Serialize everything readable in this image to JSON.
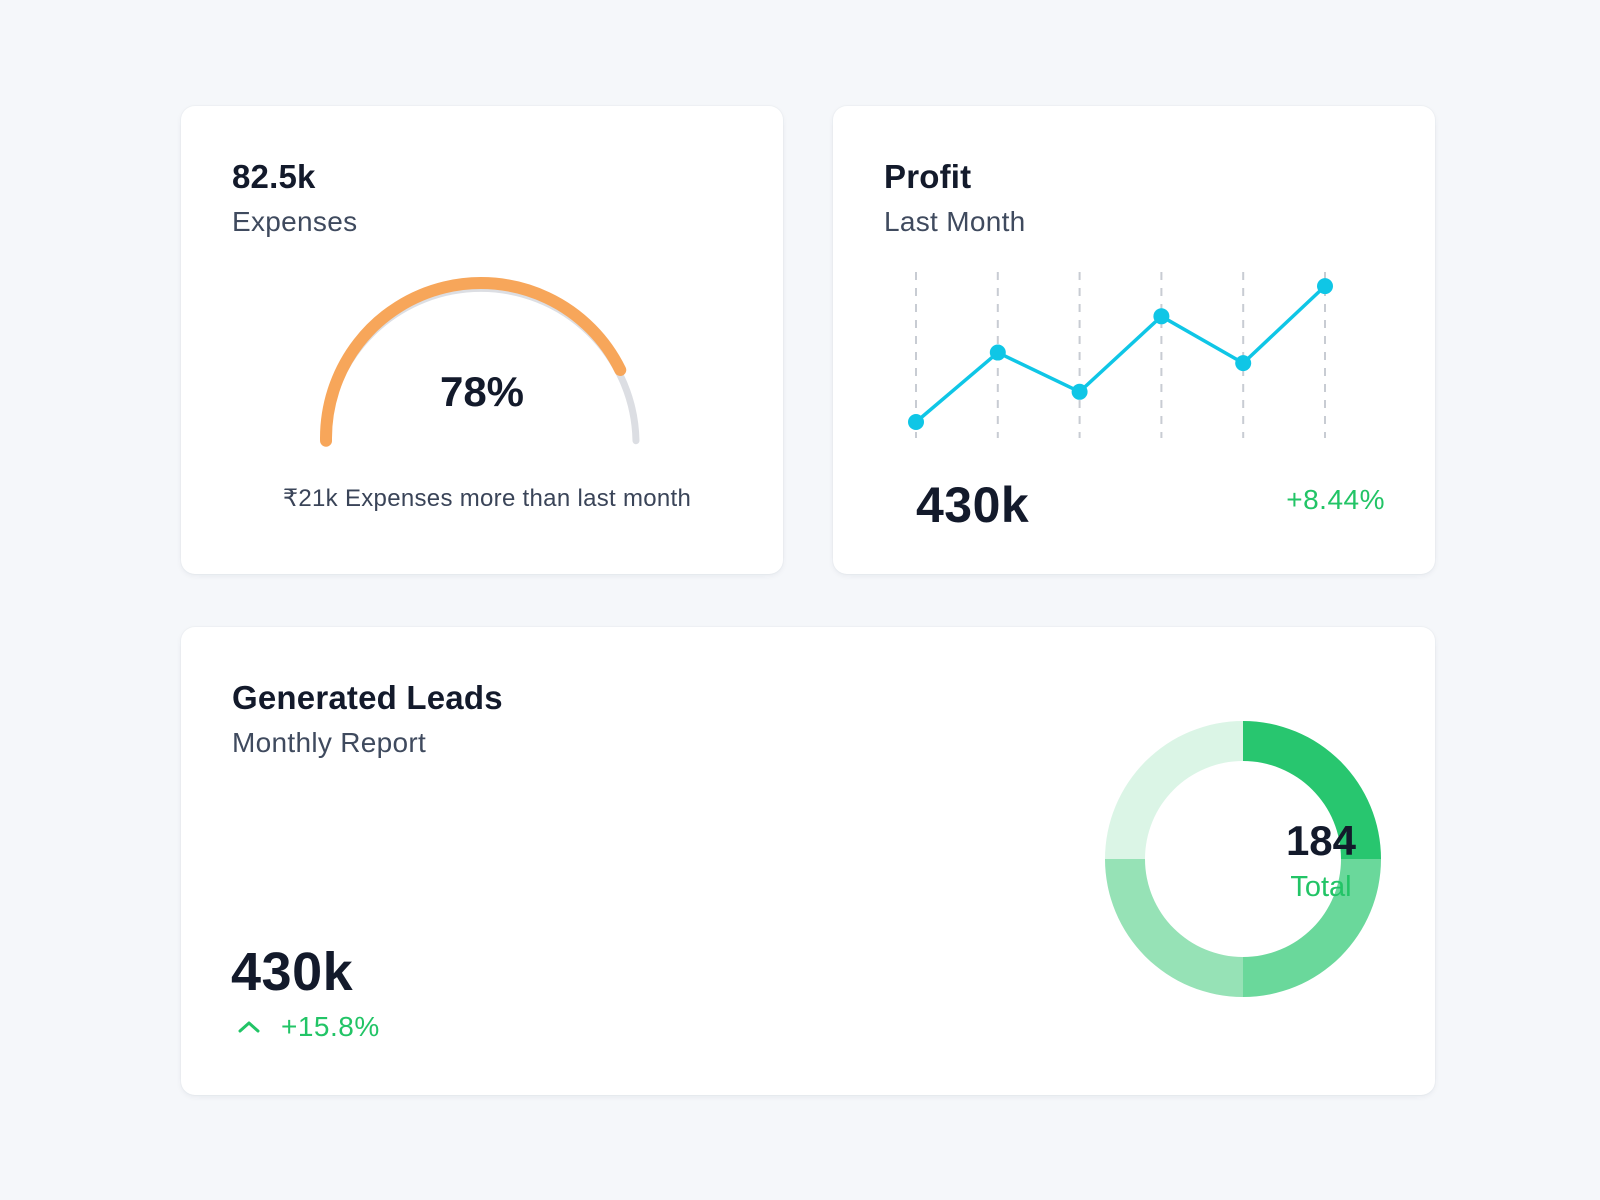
{
  "expenses_card": {
    "title": "82.5k",
    "subtitle": "Expenses",
    "gauge_value": "78%",
    "gauge_percent": 78,
    "caption": "₹21k Expenses more than last month",
    "colors": {
      "progress": "#f7a65a",
      "track": "#dcdee3"
    }
  },
  "profit_card": {
    "title": "Profit",
    "subtitle": "Last Month",
    "value": "430k",
    "change": "+8.44%",
    "colors": {
      "line": "#0fc6e6",
      "gridline": "#c8ccd3",
      "change": "#22c466"
    }
  },
  "leads_card": {
    "title": "Generated Leads",
    "subtitle": "Monthly Report",
    "value": "430k",
    "change": "+15.8%",
    "change_icon": "chevron-up-icon",
    "donut_total": "184",
    "donut_label": "Total",
    "colors": {
      "accent": "#22c466"
    }
  },
  "chart_data": [
    {
      "type": "line",
      "x": [
        1,
        2,
        3,
        4,
        5,
        6
      ],
      "values": [
        0,
        46,
        20,
        70,
        39,
        90
      ],
      "ylim": [
        0,
        100
      ],
      "grid": "vertical-dashed"
    },
    {
      "type": "pie",
      "style": "donut",
      "values": [
        25,
        25,
        25,
        25
      ],
      "colors": [
        "#28c66f",
        "#6ad89b",
        "#96e2b6",
        "#dbf5e6"
      ]
    }
  ]
}
